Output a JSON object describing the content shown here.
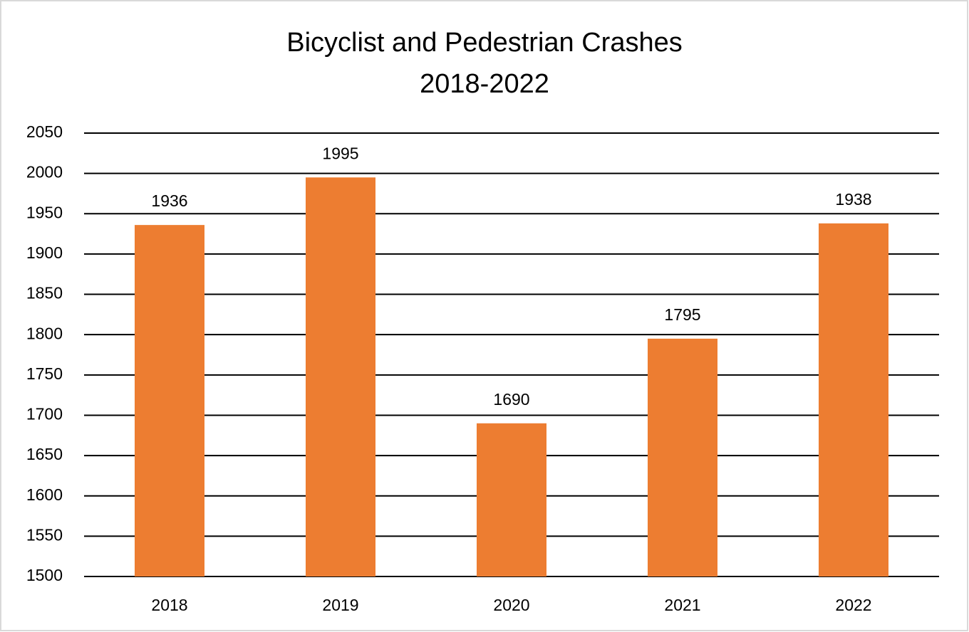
{
  "chart_data": {
    "type": "bar",
    "title": "Bicyclist and Pedestrian Crashes",
    "subtitle": "2018-2022",
    "categories": [
      "2018",
      "2019",
      "2020",
      "2021",
      "2022"
    ],
    "values": [
      1936,
      1995,
      1690,
      1795,
      1938
    ],
    "color": "#ed7d31",
    "ylim": [
      1500,
      2050
    ],
    "yticks": [
      1500,
      1550,
      1600,
      1650,
      1700,
      1750,
      1800,
      1850,
      1900,
      1950,
      2000,
      2050
    ],
    "grid": true,
    "data_labels": true
  }
}
